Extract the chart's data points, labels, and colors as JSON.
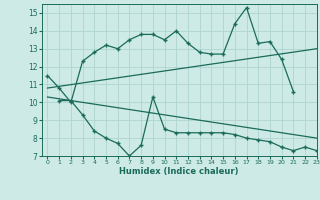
{
  "xlabel": "Humidex (Indice chaleur)",
  "bg_color": "#ceeae6",
  "grid_color": "#aed4d0",
  "line_color": "#1a6b5a",
  "xlim": [
    -0.5,
    23
  ],
  "ylim": [
    7,
    15.5
  ],
  "xticks": [
    0,
    1,
    2,
    3,
    4,
    5,
    6,
    7,
    8,
    9,
    10,
    11,
    12,
    13,
    14,
    15,
    16,
    17,
    18,
    19,
    20,
    21,
    22,
    23
  ],
  "yticks": [
    7,
    8,
    9,
    10,
    11,
    12,
    13,
    14,
    15
  ],
  "line1_x": [
    0,
    1,
    2,
    3,
    4,
    5,
    6,
    7,
    8,
    9,
    10,
    11,
    12,
    13,
    14,
    15,
    16,
    17,
    18,
    19,
    20,
    21
  ],
  "line1_y": [
    11.5,
    10.8,
    10.0,
    12.3,
    12.8,
    13.2,
    13.0,
    13.5,
    13.8,
    13.8,
    13.5,
    14.0,
    13.3,
    12.8,
    12.7,
    12.7,
    14.4,
    15.3,
    13.3,
    13.4,
    12.4,
    10.6
  ],
  "line2_x": [
    1,
    2,
    3,
    4,
    5,
    6,
    7,
    8,
    9,
    10,
    11,
    12,
    13,
    14,
    15,
    16,
    17,
    18,
    19,
    20,
    21,
    22,
    23
  ],
  "line2_y": [
    10.1,
    10.1,
    9.3,
    8.4,
    8.0,
    7.7,
    7.0,
    7.6,
    10.3,
    8.5,
    8.3,
    8.3,
    8.3,
    8.3,
    8.3,
    8.2,
    8.0,
    7.9,
    7.8,
    7.5,
    7.3,
    7.5,
    7.3
  ],
  "line3_x": [
    0,
    23
  ],
  "line3_y": [
    10.8,
    13.0
  ],
  "line4_x": [
    0,
    23
  ],
  "line4_y": [
    10.3,
    8.0
  ]
}
